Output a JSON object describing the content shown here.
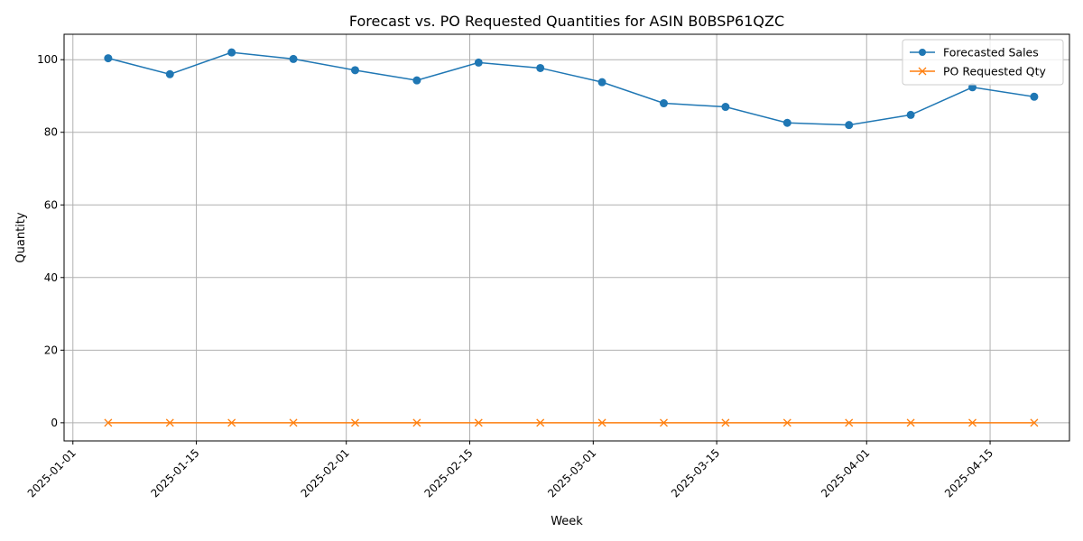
{
  "chart_data": {
    "type": "line",
    "title": "Forecast vs. PO Requested Quantities for ASIN B0BSP61QZC",
    "xlabel": "Week",
    "ylabel": "Quantity",
    "x": [
      "2025-01-05",
      "2025-01-12",
      "2025-01-19",
      "2025-01-26",
      "2025-02-02",
      "2025-02-09",
      "2025-02-16",
      "2025-02-23",
      "2025-03-02",
      "2025-03-09",
      "2025-03-16",
      "2025-03-23",
      "2025-03-30",
      "2025-04-06",
      "2025-04-13",
      "2025-04-20"
    ],
    "x_ticks": [
      "2025-01-01",
      "2025-01-15",
      "2025-02-01",
      "2025-02-15",
      "2025-03-01",
      "2025-03-15",
      "2025-04-01",
      "2025-04-15"
    ],
    "xlim": [
      "2024-12-31",
      "2025-04-24"
    ],
    "y_ticks": [
      0,
      20,
      40,
      60,
      80,
      100
    ],
    "ylim": [
      -5,
      107
    ],
    "grid": true,
    "legend_position": "top-right",
    "series": [
      {
        "name": "Forecasted Sales",
        "marker": "circle",
        "color": "#1f77b4",
        "values": [
          100.4,
          96.0,
          102.0,
          100.2,
          97.1,
          94.3,
          99.2,
          97.7,
          93.8,
          88.0,
          87.0,
          82.6,
          82.0,
          84.8,
          92.4,
          89.8
        ]
      },
      {
        "name": "PO Requested Qty",
        "marker": "x",
        "color": "#ff7f0e",
        "values": [
          0,
          0,
          0,
          0,
          0,
          0,
          0,
          0,
          0,
          0,
          0,
          0,
          0,
          0,
          0,
          0
        ]
      }
    ]
  }
}
